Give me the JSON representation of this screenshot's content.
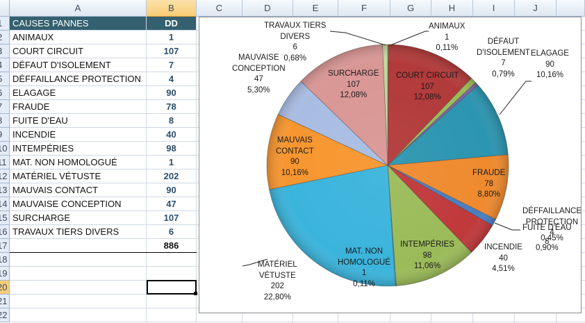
{
  "spreadsheet": {
    "columns": [
      "A",
      "B",
      "C",
      "D",
      "E",
      "F",
      "G",
      "H",
      "I",
      "J"
    ],
    "selected_column": "B",
    "row_numbers": [
      "1",
      "2",
      "3",
      "4",
      "5",
      "6",
      "7",
      "8",
      "9",
      "10",
      "11",
      "12",
      "13",
      "14",
      "15",
      "16",
      "17",
      "18",
      "19",
      "20",
      "21",
      "22"
    ],
    "selected_row": "20",
    "header": {
      "cause": "CAUSES PANNES",
      "value": "DD"
    },
    "rows": [
      {
        "cause": "ANIMAUX",
        "value": "1"
      },
      {
        "cause": "COURT CIRCUIT",
        "value": "107"
      },
      {
        "cause": "DÉFAUT D'ISOLEMENT",
        "value": "7"
      },
      {
        "cause": "DÉFFAILLANCE PROTECTION",
        "value": "4"
      },
      {
        "cause": "ELAGAGE",
        "value": "90"
      },
      {
        "cause": "FRAUDE",
        "value": "78"
      },
      {
        "cause": "FUITE D'EAU",
        "value": "8"
      },
      {
        "cause": "INCENDIE",
        "value": "40"
      },
      {
        "cause": "INTEMPÉRIES",
        "value": "98"
      },
      {
        "cause": "MAT. NON HOMOLOGUÉ",
        "value": "1"
      },
      {
        "cause": "MATÉRIEL VÉTUSTE",
        "value": "202"
      },
      {
        "cause": "MAUVAIS CONTACT",
        "value": "90"
      },
      {
        "cause": "MAUVAISE CONCEPTION",
        "value": "47"
      },
      {
        "cause": "SURCHARGE",
        "value": "107"
      },
      {
        "cause": "TRAVAUX TIERS DIVERS",
        "value": "6"
      }
    ],
    "total": "886",
    "header_color": "#34606f"
  },
  "chart_data": {
    "type": "pie",
    "title": "",
    "start_angle_deg": 0,
    "direction": "clockwise",
    "categories": [
      "ANIMAUX",
      "COURT CIRCUIT",
      "DÉFAUT D'ISOLEMENT",
      "DÉFFAILLANCE PROTECTION",
      "ELAGAGE",
      "FRAUDE",
      "FUITE D'EAU",
      "INCENDIE",
      "INTEMPÉRIES",
      "MAT. NON HOMOLOGUÉ",
      "MATÉRIEL VÉTUSTE",
      "MAUVAIS CONTACT",
      "MAUVAISE CONCEPTION",
      "SURCHARGE",
      "TRAVAUX TIERS DIVERS"
    ],
    "values": [
      1,
      107,
      7,
      4,
      90,
      78,
      8,
      40,
      98,
      1,
      202,
      90,
      47,
      107,
      6
    ],
    "percentages": [
      "0,11%",
      "12,08%",
      "0,79%",
      "0,45%",
      "10,16%",
      "8,80%",
      "0,90%",
      "4,51%",
      "11,06%",
      "0,11%",
      "22,80%",
      "10,16%",
      "5,30%",
      "12,08%",
      "0,68%"
    ],
    "colors": [
      "#9bbb59",
      "#b23a3a",
      "#9bbb59",
      "#8064a2",
      "#2c95b0",
      "#ef8a2e",
      "#4a7ec2",
      "#c0393b",
      "#9bbb59",
      "#4aacc6",
      "#3bb4dc",
      "#f7962f",
      "#a9bde3",
      "#d99795",
      "#c3d69b"
    ],
    "legend": "none",
    "data_labels": [
      "category",
      "value",
      "percent"
    ],
    "labels": [
      {
        "lines": [
          "ANIMAUX",
          "1",
          "0,11%"
        ]
      },
      {
        "lines": [
          "COURT CIRCUIT",
          "107",
          "12,08%"
        ]
      },
      {
        "lines": [
          "DÉFAUT",
          "D'ISOLEMENT",
          "7",
          "0,79%"
        ]
      },
      {
        "lines": [
          "DÉFFAILLANCE",
          "PROTECTION",
          "4",
          "0,45%"
        ]
      },
      {
        "lines": [
          "ELAGAGE",
          "90",
          "10,16%"
        ]
      },
      {
        "lines": [
          "FRAUDE",
          "78",
          "8,80%"
        ]
      },
      {
        "lines": [
          "FUITE D'EAU",
          "8",
          "0,90%"
        ]
      },
      {
        "lines": [
          "INCENDIE",
          "40",
          "4,51%"
        ]
      },
      {
        "lines": [
          "INTEMPÉRIES",
          "98",
          "11,06%"
        ]
      },
      {
        "lines": [
          "MAT. NON",
          "HOMOLOGUÉ",
          "1",
          "0,11%"
        ]
      },
      {
        "lines": [
          "MATÉRIEL",
          "VÉTUSTE",
          "202",
          "22,80%"
        ]
      },
      {
        "lines": [
          "MAUVAIS",
          "CONTACT",
          "90",
          "10,16%"
        ]
      },
      {
        "lines": [
          "MAUVAISE",
          "CONCEPTION",
          "47",
          "5,30%"
        ]
      },
      {
        "lines": [
          "SURCHARGE",
          "107",
          "12,08%"
        ]
      },
      {
        "lines": [
          "TRAVAUX TIERS",
          "DIVERS",
          "6",
          "0,68%"
        ]
      }
    ]
  }
}
